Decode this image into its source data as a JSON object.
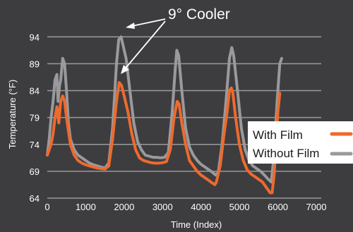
{
  "chart_data": {
    "type": "line",
    "title": "",
    "xlabel": "Time (Index)",
    "ylabel": "Temperature (°F)",
    "xlim": [
      0,
      7000
    ],
    "ylim": [
      64,
      96
    ],
    "x_ticks": [
      0,
      1000,
      2000,
      3000,
      4000,
      5000,
      6000,
      7000
    ],
    "y_ticks": [
      64,
      69,
      74,
      79,
      84,
      89,
      94
    ],
    "grid": "horizontal",
    "legend": "right",
    "annotation": "9° Cooler",
    "series": [
      {
        "name": "With Film",
        "color": "#ee6a2d",
        "points": [
          [
            0,
            72
          ],
          [
            50,
            73
          ],
          [
            100,
            74
          ],
          [
            150,
            76
          ],
          [
            200,
            79
          ],
          [
            250,
            81
          ],
          [
            300,
            78
          ],
          [
            350,
            82
          ],
          [
            400,
            83
          ],
          [
            450,
            82
          ],
          [
            500,
            79
          ],
          [
            600,
            74
          ],
          [
            700,
            72
          ],
          [
            800,
            71
          ],
          [
            900,
            70.5
          ],
          [
            1000,
            70.2
          ],
          [
            1100,
            70
          ],
          [
            1200,
            69.8
          ],
          [
            1300,
            69.6
          ],
          [
            1400,
            69.5
          ],
          [
            1500,
            69.4
          ],
          [
            1600,
            70
          ],
          [
            1700,
            75
          ],
          [
            1800,
            82
          ],
          [
            1870,
            85.5
          ],
          [
            1930,
            85
          ],
          [
            2000,
            83
          ],
          [
            2100,
            80
          ],
          [
            2200,
            76
          ],
          [
            2300,
            73
          ],
          [
            2400,
            71.5
          ],
          [
            2500,
            71
          ],
          [
            2600,
            70.8
          ],
          [
            2700,
            70.6
          ],
          [
            2800,
            70.5
          ],
          [
            2900,
            70.5
          ],
          [
            3000,
            70.6
          ],
          [
            3100,
            70.8
          ],
          [
            3200,
            73
          ],
          [
            3300,
            79
          ],
          [
            3380,
            82
          ],
          [
            3430,
            81.5
          ],
          [
            3500,
            78
          ],
          [
            3600,
            74
          ],
          [
            3700,
            71
          ],
          [
            3800,
            70
          ],
          [
            3900,
            69
          ],
          [
            4000,
            68.3
          ],
          [
            4100,
            67.8
          ],
          [
            4200,
            67.3
          ],
          [
            4300,
            66.8
          ],
          [
            4360,
            66.5
          ],
          [
            4400,
            67
          ],
          [
            4500,
            70
          ],
          [
            4600,
            76
          ],
          [
            4680,
            80
          ],
          [
            4740,
            84
          ],
          [
            4790,
            84.5
          ],
          [
            4830,
            83.5
          ],
          [
            4900,
            79
          ],
          [
            5000,
            74
          ],
          [
            5100,
            71
          ],
          [
            5200,
            69.3
          ],
          [
            5300,
            68.5
          ],
          [
            5400,
            68
          ],
          [
            5500,
            67.5
          ],
          [
            5600,
            67
          ],
          [
            5700,
            66
          ],
          [
            5800,
            65
          ],
          [
            5850,
            65
          ],
          [
            5900,
            68
          ],
          [
            5950,
            74
          ],
          [
            6000,
            80
          ],
          [
            6050,
            83.5
          ]
        ]
      },
      {
        "name": "Without Film",
        "color": "#9a9a9c",
        "points": [
          [
            0,
            72
          ],
          [
            50,
            75
          ],
          [
            100,
            79
          ],
          [
            150,
            82
          ],
          [
            200,
            86
          ],
          [
            250,
            87
          ],
          [
            280,
            82
          ],
          [
            320,
            85
          ],
          [
            350,
            86
          ],
          [
            400,
            90
          ],
          [
            450,
            89
          ],
          [
            500,
            84
          ],
          [
            550,
            78
          ],
          [
            600,
            75
          ],
          [
            700,
            73
          ],
          [
            800,
            72
          ],
          [
            900,
            71.5
          ],
          [
            1000,
            71
          ],
          [
            1100,
            70.5
          ],
          [
            1200,
            70.2
          ],
          [
            1300,
            70
          ],
          [
            1400,
            69.8
          ],
          [
            1500,
            69.6
          ],
          [
            1600,
            70.5
          ],
          [
            1700,
            77
          ],
          [
            1800,
            89
          ],
          [
            1860,
            93.5
          ],
          [
            1920,
            94
          ],
          [
            1970,
            92.5
          ],
          [
            2050,
            90
          ],
          [
            2150,
            84
          ],
          [
            2250,
            78
          ],
          [
            2350,
            74.5
          ],
          [
            2450,
            73
          ],
          [
            2550,
            72
          ],
          [
            2650,
            71.8
          ],
          [
            2750,
            71.6
          ],
          [
            2850,
            71.6
          ],
          [
            2950,
            71.5
          ],
          [
            3050,
            71.6
          ],
          [
            3150,
            72.5
          ],
          [
            3250,
            80
          ],
          [
            3330,
            88
          ],
          [
            3370,
            91.5
          ],
          [
            3420,
            90.5
          ],
          [
            3500,
            84
          ],
          [
            3600,
            77
          ],
          [
            3700,
            73.5
          ],
          [
            3800,
            72
          ],
          [
            3900,
            71
          ],
          [
            4000,
            70.3
          ],
          [
            4100,
            69.8
          ],
          [
            4200,
            69.3
          ],
          [
            4300,
            68.8
          ],
          [
            4380,
            68.3
          ],
          [
            4450,
            68.8
          ],
          [
            4550,
            74
          ],
          [
            4650,
            82
          ],
          [
            4740,
            90
          ],
          [
            4800,
            92
          ],
          [
            4850,
            90.5
          ],
          [
            4950,
            84
          ],
          [
            5050,
            77
          ],
          [
            5150,
            73
          ],
          [
            5250,
            71
          ],
          [
            5350,
            70
          ],
          [
            5450,
            69.5
          ],
          [
            5550,
            69
          ],
          [
            5650,
            68.3
          ],
          [
            5750,
            67.5
          ],
          [
            5830,
            67
          ],
          [
            5900,
            72
          ],
          [
            5980,
            82
          ],
          [
            6050,
            89
          ],
          [
            6100,
            90
          ]
        ]
      }
    ]
  }
}
